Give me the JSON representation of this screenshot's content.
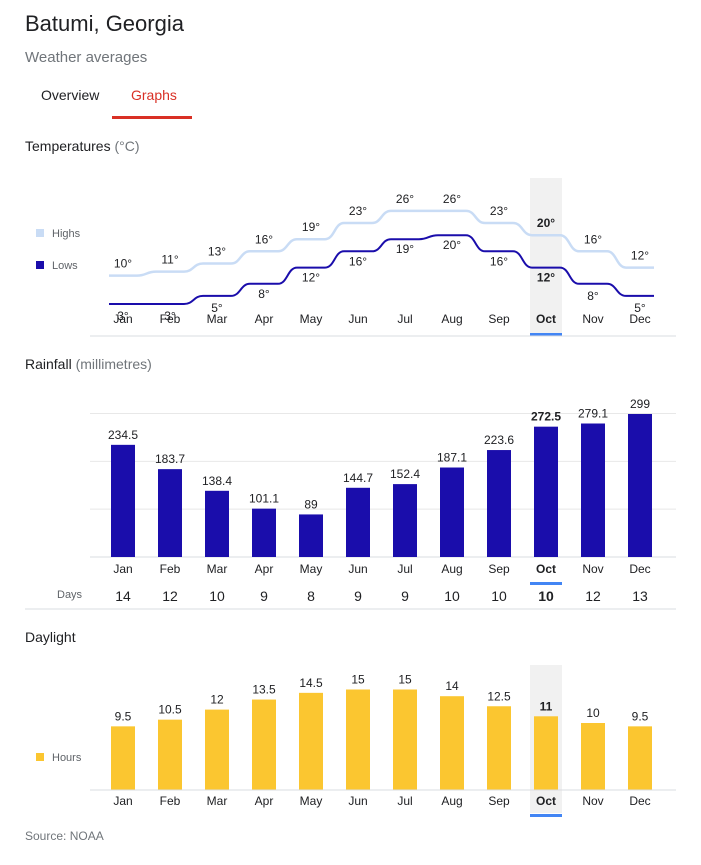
{
  "header": {
    "title": "Batumi, Georgia",
    "subtitle": "Weather averages"
  },
  "tabs": [
    {
      "label": "Overview",
      "selected": false
    },
    {
      "label": "Graphs",
      "selected": true
    }
  ],
  "months": [
    "Jan",
    "Feb",
    "Mar",
    "Apr",
    "May",
    "Jun",
    "Jul",
    "Aug",
    "Sep",
    "Oct",
    "Nov",
    "Dec"
  ],
  "selected_month_index": 9,
  "temperatures": {
    "title": "Temperatures",
    "unit": "(°C)",
    "legend_highs": "Highs",
    "legend_lows": "Lows"
  },
  "rainfall": {
    "title": "Rainfall",
    "unit": "(millimetres)",
    "days_label": "Days"
  },
  "daylight": {
    "title": "Daylight",
    "legend_hours": "Hours"
  },
  "source": {
    "label": "Source:",
    "name": "NOAA"
  },
  "colors": {
    "highs": "#c9dcf5",
    "lows": "#1a0dab",
    "rain": "#1a0dab",
    "daylight": "#fbc630",
    "accent": "#d93025",
    "selected_month_underline": "#4285f4",
    "selected_column": "#f1f1f1"
  },
  "chart_data": [
    {
      "type": "line",
      "title": "Temperatures",
      "ylabel": "(°C)",
      "categories": [
        "Jan",
        "Feb",
        "Mar",
        "Apr",
        "May",
        "Jun",
        "Jul",
        "Aug",
        "Sep",
        "Oct",
        "Nov",
        "Dec"
      ],
      "series": [
        {
          "name": "Highs",
          "values": [
            10,
            11,
            13,
            16,
            19,
            23,
            26,
            26,
            23,
            20,
            16,
            12
          ],
          "labels": [
            "10°",
            "11°",
            "13°",
            "16°",
            "19°",
            "23°",
            "26°",
            "26°",
            "23°",
            "20°",
            "16°",
            "12°"
          ]
        },
        {
          "name": "Lows",
          "values": [
            3,
            3,
            5,
            8,
            12,
            16,
            19,
            20,
            16,
            12,
            8,
            5
          ],
          "labels": [
            "3°",
            "3°",
            "5°",
            "8°",
            "12°",
            "16°",
            "19°",
            "20°",
            "16°",
            "12°",
            "8°",
            "5°"
          ]
        }
      ],
      "legend": "left"
    },
    {
      "type": "bar",
      "title": "Rainfall",
      "ylabel": "(millimetres)",
      "categories": [
        "Jan",
        "Feb",
        "Mar",
        "Apr",
        "May",
        "Jun",
        "Jul",
        "Aug",
        "Sep",
        "Oct",
        "Nov",
        "Dec"
      ],
      "values": [
        234.5,
        183.7,
        138.4,
        101.1,
        89,
        144.7,
        152.4,
        187.1,
        223.6,
        272.5,
        279.1,
        299
      ],
      "labels": [
        "234.5",
        "183.7",
        "138.4",
        "101.1",
        "89",
        "144.7",
        "152.4",
        "187.1",
        "223.6",
        "272.5",
        "279.1",
        "299"
      ],
      "days": [
        "14",
        "12",
        "10",
        "9",
        "8",
        "9",
        "9",
        "10",
        "10",
        "10",
        "12",
        "13"
      ],
      "ylim": [
        0,
        300
      ],
      "grid": true
    },
    {
      "type": "bar",
      "title": "Daylight",
      "categories": [
        "Jan",
        "Feb",
        "Mar",
        "Apr",
        "May",
        "Jun",
        "Jul",
        "Aug",
        "Sep",
        "Oct",
        "Nov",
        "Dec"
      ],
      "series": [
        {
          "name": "Hours",
          "values": [
            9.5,
            10.5,
            12,
            13.5,
            14.5,
            15,
            15,
            14,
            12.5,
            11,
            10,
            9.5
          ],
          "labels": [
            "9.5",
            "10.5",
            "12",
            "13.5",
            "14.5",
            "15",
            "15",
            "14",
            "12.5",
            "11",
            "10",
            "9.5"
          ]
        }
      ],
      "legend": "left"
    }
  ]
}
